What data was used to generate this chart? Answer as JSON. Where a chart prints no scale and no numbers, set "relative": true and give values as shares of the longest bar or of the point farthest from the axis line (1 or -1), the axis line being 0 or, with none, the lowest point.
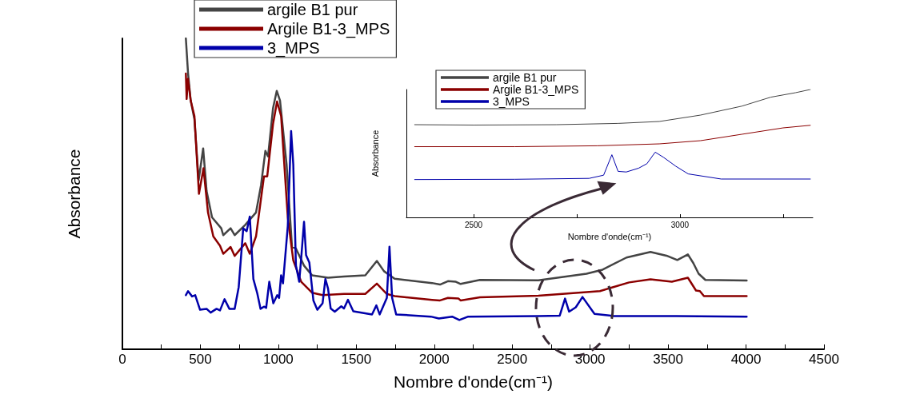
{
  "chart_data": [
    {
      "type": "line",
      "xlabel": "Nombre d'onde(cm⁻¹)",
      "ylabel": "Absorbance",
      "relative": true,
      "xlim": [
        0,
        4500
      ],
      "xticks": [
        0,
        {
          "value": 250,
          "label": null
        },
        500,
        {
          "value": 750,
          "label": null
        },
        1000,
        {
          "value": 1250,
          "label": null
        },
        1500,
        {
          "value": 1750,
          "label": null
        },
        2000,
        {
          "value": 2250,
          "label": null
        },
        2500,
        {
          "value": 2750,
          "label": null
        },
        3000,
        {
          "value": 3250,
          "label": null
        },
        3500,
        {
          "value": 3750,
          "label": null
        },
        4000,
        {
          "value": 4250,
          "label": null
        },
        4500
      ],
      "legend": "top left",
      "grid": false,
      "marker": "none",
      "line_style": "solid",
      "series": [
        {
          "name": "argile B1 pur",
          "color": "#444444",
          "x": [
            407,
            421,
            438,
            462,
            489,
            518,
            540,
            575,
            634,
            647,
            694,
            720,
            788,
            857,
            889,
            917,
            934,
            966,
            990,
            1011,
            1053,
            1088,
            1113,
            1165,
            1216,
            1319,
            1421,
            1558,
            1632,
            1678,
            1746,
            1986,
            2037,
            2088,
            2139,
            2169,
            2293,
            2668,
            2977,
            3080,
            3233,
            3387,
            3490,
            3559,
            3627,
            3662,
            3696,
            3739,
            4004
          ],
          "values": [
            1.0,
            0.888,
            0.8,
            0.74,
            0.543,
            0.646,
            0.509,
            0.424,
            0.389,
            0.367,
            0.389,
            0.367,
            0.4,
            0.44,
            0.527,
            0.638,
            0.62,
            0.775,
            0.831,
            0.8,
            0.595,
            0.329,
            0.324,
            0.269,
            0.238,
            0.23,
            0.234,
            0.238,
            0.284,
            0.251,
            0.227,
            0.213,
            0.208,
            0.219,
            0.217,
            0.21,
            0.223,
            0.222,
            0.243,
            0.256,
            0.295,
            0.313,
            0.301,
            0.287,
            0.305,
            0.277,
            0.243,
            0.223,
            0.221
          ]
        },
        {
          "name": "Argile B1-3_MPS",
          "color": "#8b0000",
          "x": [
            407,
            412,
            421,
            438,
            462,
            491,
            520,
            549,
            583,
            626,
            647,
            694,
            720,
            788,
            817,
            857,
            908,
            929,
            966,
            992,
            1018,
            1061,
            1096,
            1147,
            1216,
            1284,
            1421,
            1558,
            1632,
            1695,
            1746,
            1986,
            2037,
            2088,
            2156,
            2169,
            2293,
            2668,
            3063,
            3250,
            3387,
            3524,
            3627,
            3679,
            3704,
            3730,
            4004
          ],
          "values": [
            0.887,
            0.805,
            0.87,
            0.8,
            0.75,
            0.5,
            0.582,
            0.44,
            0.363,
            0.333,
            0.307,
            0.329,
            0.3,
            0.341,
            0.307,
            0.363,
            0.556,
            0.556,
            0.724,
            0.797,
            0.75,
            0.423,
            0.286,
            0.217,
            0.182,
            0.174,
            0.178,
            0.178,
            0.211,
            0.178,
            0.171,
            0.159,
            0.157,
            0.165,
            0.163,
            0.157,
            0.167,
            0.172,
            0.187,
            0.215,
            0.225,
            0.217,
            0.23,
            0.189,
            0.187,
            0.171,
            0.171
          ]
        },
        {
          "name": "3_MPS",
          "color": "#0000aa",
          "x": [
            407,
            421,
            447,
            467,
            498,
            540,
            566,
            604,
            626,
            655,
            686,
            720,
            746,
            775,
            797,
            817,
            840,
            865,
            886,
            908,
            922,
            942,
            968,
            993,
            1005,
            1018,
            1030,
            1061,
            1082,
            1096,
            1113,
            1134,
            1147,
            1165,
            1178,
            1199,
            1225,
            1250,
            1284,
            1302,
            1319,
            1336,
            1362,
            1404,
            1421,
            1447,
            1481,
            1601,
            1629,
            1650,
            1696,
            1713,
            1730,
            1756,
            1978,
            2030,
            2115,
            2161,
            2218,
            2668,
            2805,
            2839,
            2865,
            2908,
            2951,
            3028,
            3147,
            3550,
            4004
          ],
          "values": [
            0.174,
            0.187,
            0.17,
            0.174,
            0.127,
            0.13,
            0.118,
            0.13,
            0.125,
            0.161,
            0.13,
            0.13,
            0.2,
            0.389,
            0.38,
            0.427,
            0.226,
            0.18,
            0.13,
            0.137,
            0.133,
            0.217,
            0.148,
            0.174,
            0.165,
            0.238,
            0.212,
            0.397,
            0.702,
            0.595,
            0.269,
            0.217,
            0.294,
            0.41,
            0.303,
            0.279,
            0.157,
            0.127,
            0.148,
            0.226,
            0.195,
            0.131,
            0.121,
            0.138,
            0.131,
            0.159,
            0.122,
            0.112,
            0.141,
            0.112,
            0.165,
            0.33,
            0.165,
            0.112,
            0.105,
            0.099,
            0.105,
            0.094,
            0.105,
            0.107,
            0.108,
            0.163,
            0.121,
            0.135,
            0.168,
            0.114,
            0.107,
            0.107,
            0.105
          ]
        }
      ]
    },
    {
      "type": "line",
      "xlabel": "Nombre d'onde(cm⁻¹)",
      "ylabel": "Absorbance",
      "relative": true,
      "xlim": [
        2337,
        3322
      ],
      "xticks": [
        2500,
        {
          "value": 2750,
          "label": null
        },
        3000,
        {
          "value": 3250,
          "label": null
        }
      ],
      "legend": "top left",
      "grid": false,
      "marker": "none",
      "line_style": "solid",
      "series": [
        {
          "name": "argile B1 pur",
          "color": "#444444",
          "x": [
            2357,
            2500,
            2700,
            2850,
            2950,
            3050,
            3150,
            3220,
            3280,
            3316
          ],
          "values": [
            0.725,
            0.722,
            0.725,
            0.735,
            0.75,
            0.8,
            0.87,
            0.94,
            0.975,
            1.0
          ]
        },
        {
          "name": "Argile B1-3_MPS",
          "color": "#8b0000",
          "x": [
            2357,
            2600,
            2800,
            2950,
            3050,
            3150,
            3250,
            3316
          ],
          "values": [
            0.553,
            0.553,
            0.56,
            0.575,
            0.6,
            0.65,
            0.7,
            0.72
          ]
        },
        {
          "name": "3_MPS",
          "color": "#0000aa",
          "x": [
            2357,
            2600,
            2780,
            2815,
            2835,
            2850,
            2870,
            2900,
            2920,
            2940,
            2960,
            2990,
            3020,
            3100,
            3316
          ],
          "values": [
            0.296,
            0.298,
            0.305,
            0.33,
            0.49,
            0.36,
            0.355,
            0.385,
            0.42,
            0.51,
            0.47,
            0.4,
            0.34,
            0.3,
            0.3
          ]
        }
      ]
    }
  ]
}
